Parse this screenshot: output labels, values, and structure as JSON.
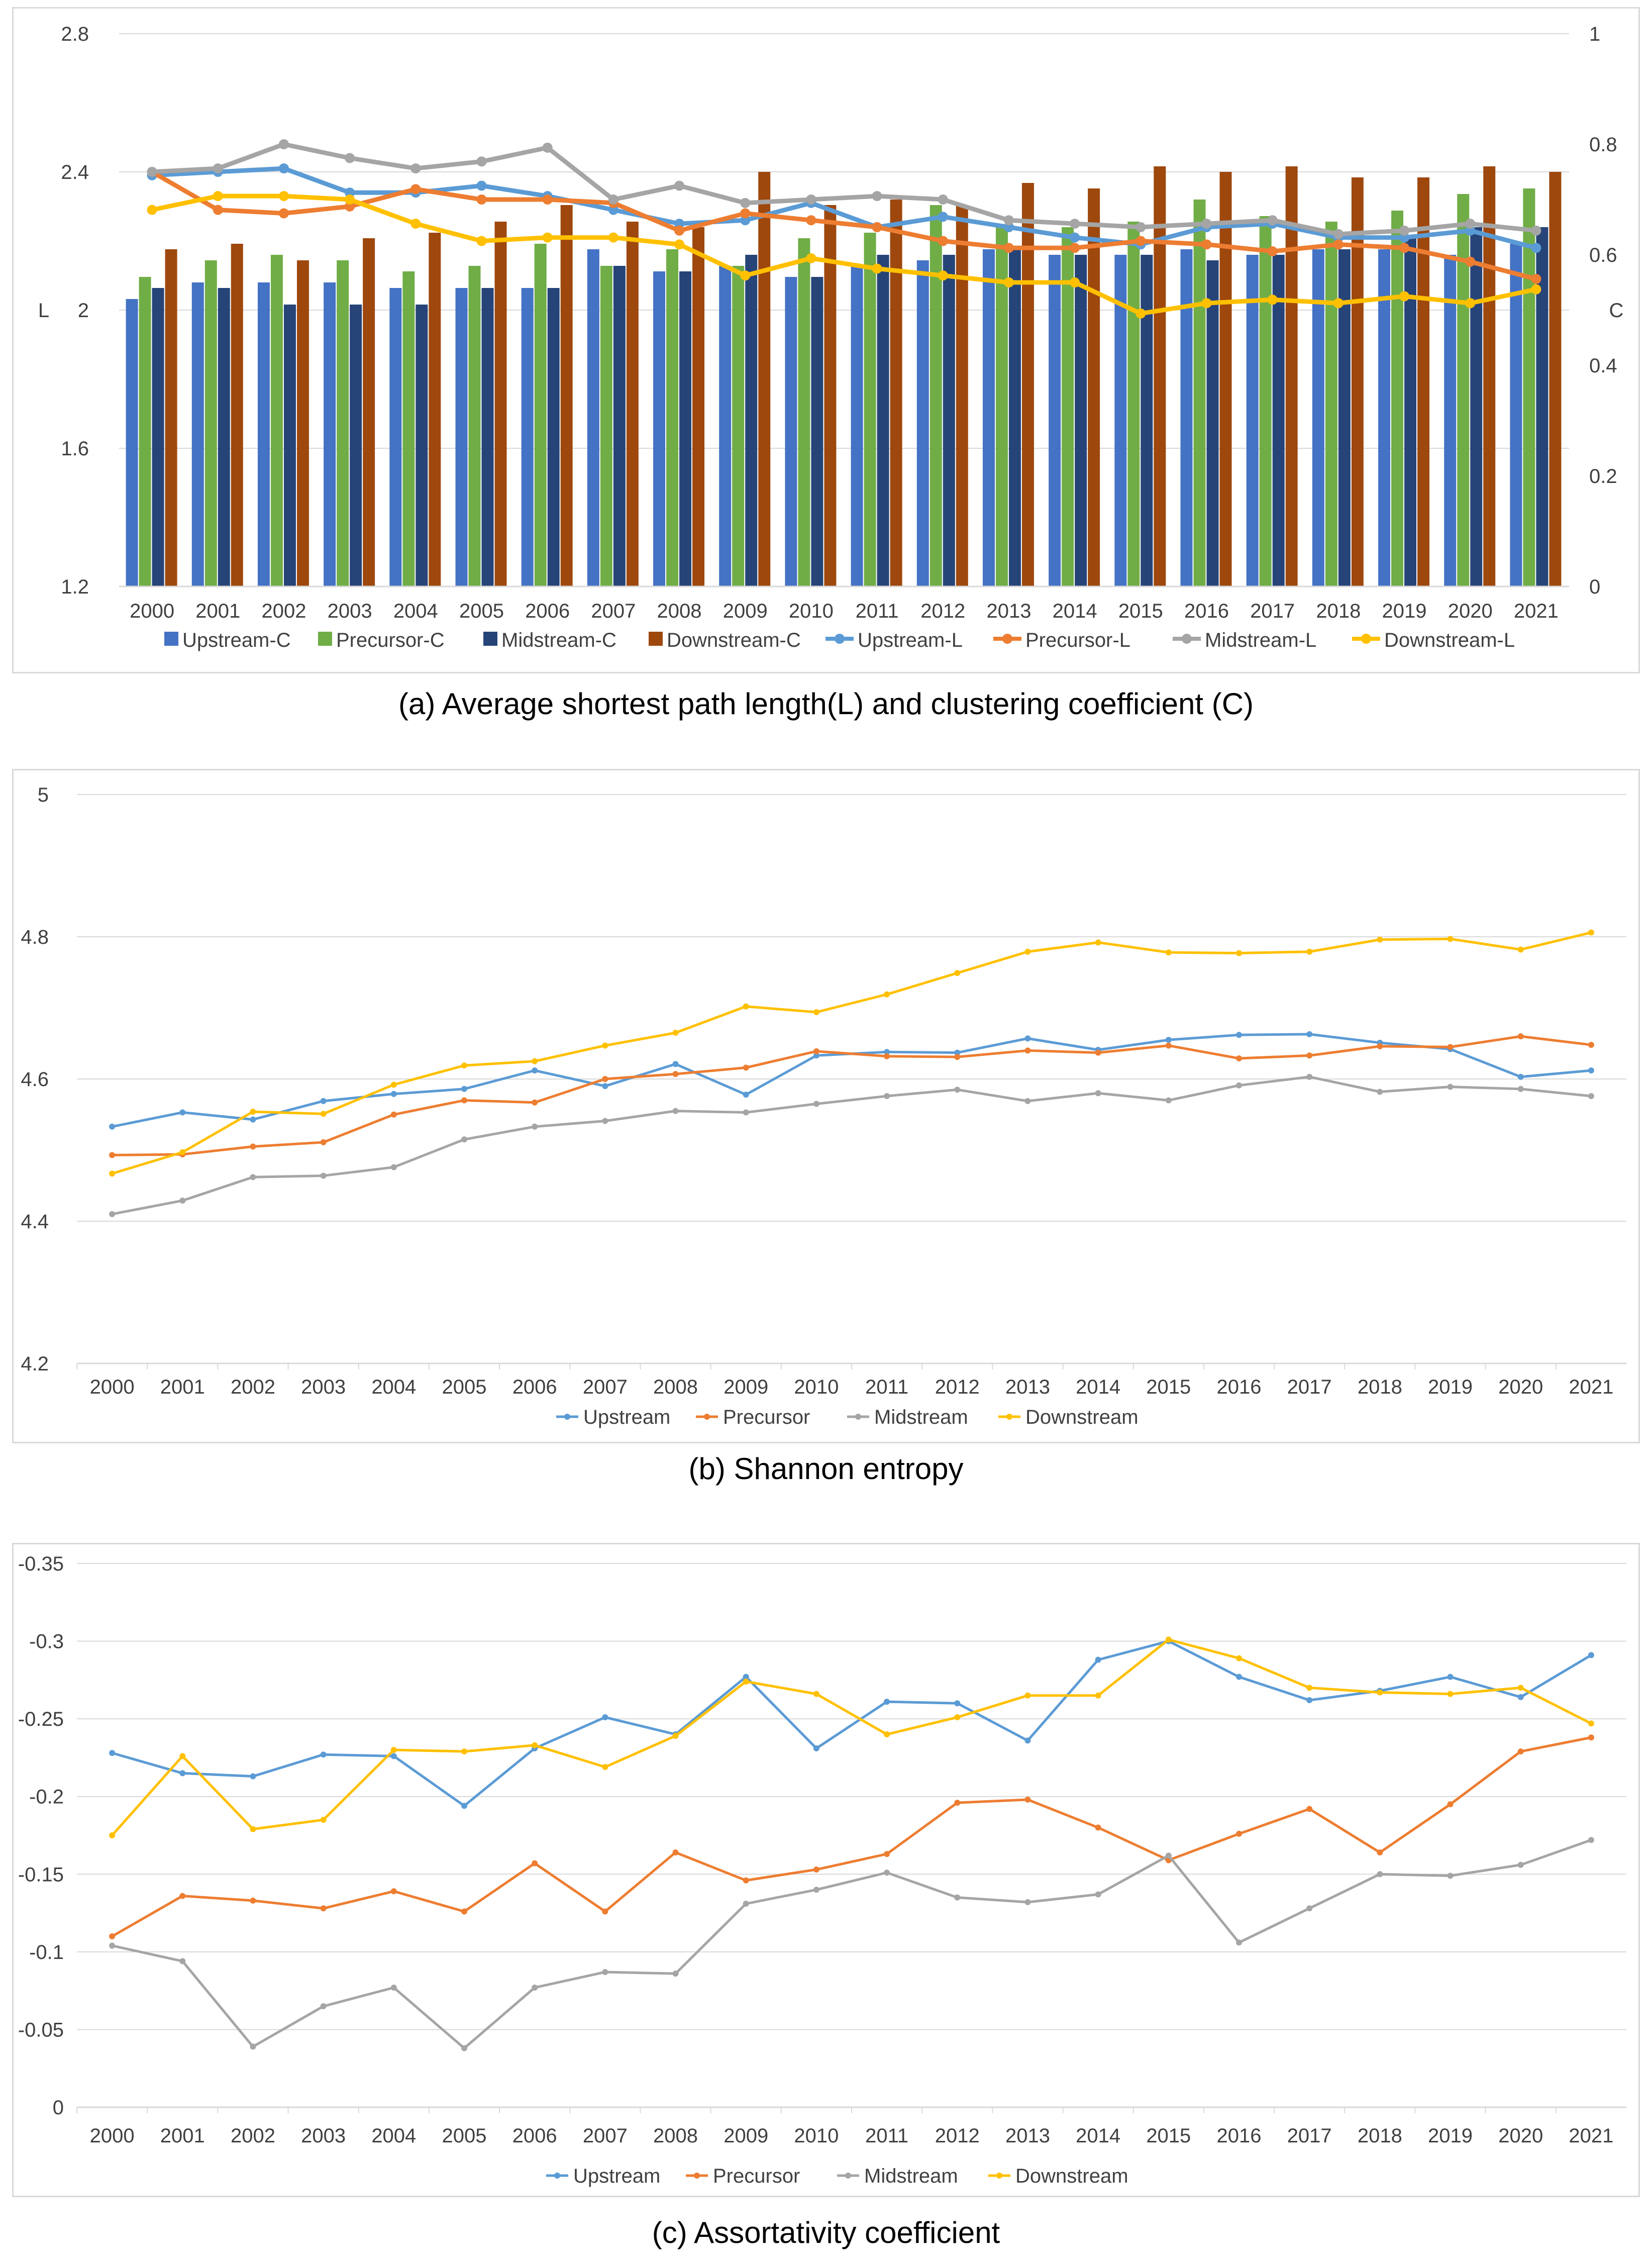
{
  "chart_data": [
    {
      "type": "bar+line",
      "id": "a",
      "caption": "(a) Average shortest path length(L) and clustering coefficient (C)",
      "title": "",
      "ylabel": "L",
      "y2label": "C",
      "categories": [
        "2000",
        "2001",
        "2002",
        "2003",
        "2004",
        "2005",
        "2006",
        "2007",
        "2008",
        "2009",
        "2010",
        "2011",
        "2012",
        "2013",
        "2014",
        "2015",
        "2016",
        "2017",
        "2018",
        "2019",
        "2020",
        "2021"
      ],
      "ylim": [
        1.2,
        2.8
      ],
      "yticks": [
        "1.2",
        "1.6",
        "2",
        "2.4",
        "2.8"
      ],
      "y2lim": [
        0,
        1
      ],
      "y2ticks": [
        "0",
        "0.2",
        "0.4",
        "0.6",
        "0.8",
        "1"
      ],
      "bars": [
        {
          "name": "Upstream-C",
          "color": "#4472c4",
          "values": [
            0.52,
            0.55,
            0.55,
            0.55,
            0.54,
            0.54,
            0.54,
            0.61,
            0.57,
            0.58,
            0.56,
            0.58,
            0.59,
            0.61,
            0.6,
            0.6,
            0.61,
            0.6,
            0.61,
            0.61,
            0.6,
            0.62
          ]
        },
        {
          "name": "Precursor-C",
          "color": "#70ad47",
          "values": [
            0.56,
            0.59,
            0.6,
            0.59,
            0.57,
            0.58,
            0.62,
            0.58,
            0.61,
            0.58,
            0.63,
            0.64,
            0.69,
            0.65,
            0.65,
            0.66,
            0.7,
            0.67,
            0.66,
            0.68,
            0.71,
            0.72
          ]
        },
        {
          "name": "Midstream-C",
          "color": "#264478",
          "values": [
            0.54,
            0.54,
            0.51,
            0.51,
            0.51,
            0.54,
            0.54,
            0.58,
            0.57,
            0.6,
            0.56,
            0.6,
            0.6,
            0.61,
            0.6,
            0.6,
            0.59,
            0.6,
            0.61,
            0.63,
            0.65,
            0.65
          ]
        },
        {
          "name": "Downstream-C",
          "color": "#9e480e",
          "values": [
            0.61,
            0.62,
            0.59,
            0.63,
            0.64,
            0.66,
            0.69,
            0.66,
            0.65,
            0.75,
            0.69,
            0.7,
            0.69,
            0.73,
            0.72,
            0.76,
            0.75,
            0.76,
            0.74,
            0.74,
            0.76,
            0.75
          ]
        }
      ],
      "lines": [
        {
          "name": "Upstream-L",
          "color": "#5b9bd5",
          "values": [
            2.39,
            2.4,
            2.41,
            2.34,
            2.34,
            2.36,
            2.33,
            2.29,
            2.25,
            2.26,
            2.31,
            2.24,
            2.27,
            2.24,
            2.21,
            2.19,
            2.24,
            2.25,
            2.21,
            2.21,
            2.23,
            2.18
          ]
        },
        {
          "name": "Precursor-L",
          "color": "#ed7d31",
          "values": [
            2.4,
            2.29,
            2.28,
            2.3,
            2.35,
            2.32,
            2.32,
            2.31,
            2.23,
            2.28,
            2.26,
            2.24,
            2.2,
            2.18,
            2.18,
            2.2,
            2.19,
            2.17,
            2.19,
            2.18,
            2.14,
            2.09
          ]
        },
        {
          "name": "Midstream-L",
          "color": "#a5a5a5",
          "values": [
            2.4,
            2.41,
            2.48,
            2.44,
            2.41,
            2.43,
            2.47,
            2.32,
            2.36,
            2.31,
            2.32,
            2.33,
            2.32,
            2.26,
            2.25,
            2.24,
            2.25,
            2.26,
            2.22,
            2.23,
            2.25,
            2.23
          ]
        },
        {
          "name": "Downstream-L",
          "color": "#ffc000",
          "values": [
            2.29,
            2.33,
            2.33,
            2.32,
            2.25,
            2.2,
            2.21,
            2.21,
            2.19,
            2.1,
            2.15,
            2.12,
            2.1,
            2.08,
            2.08,
            1.99,
            2.02,
            2.03,
            2.02,
            2.04,
            2.02,
            2.06
          ]
        }
      ],
      "legend": [
        "Upstream-C",
        "Precursor-C",
        "Midstream-C",
        "Downstream-C",
        "Upstream-L",
        "Precursor-L",
        "Midstream-L",
        "Downstream-L"
      ],
      "legend_position": "bottom"
    },
    {
      "type": "line",
      "id": "b",
      "caption": "(b) Shannon entropy",
      "title": "",
      "categories": [
        "2000",
        "2001",
        "2002",
        "2003",
        "2004",
        "2005",
        "2006",
        "2007",
        "2008",
        "2009",
        "2010",
        "2011",
        "2012",
        "2013",
        "2014",
        "2015",
        "2016",
        "2017",
        "2018",
        "2019",
        "2020",
        "2021"
      ],
      "ylim": [
        4.2,
        5
      ],
      "yticks": [
        "4.2",
        "4.4",
        "4.6",
        "4.8",
        "5"
      ],
      "series": [
        {
          "name": "Upstream",
          "color": "#5b9bd5",
          "values": [
            4.533,
            4.553,
            4.543,
            4.569,
            4.579,
            4.586,
            4.612,
            4.59,
            4.621,
            4.578,
            4.633,
            4.638,
            4.637,
            4.657,
            4.641,
            4.655,
            4.662,
            4.663,
            4.651,
            4.642,
            4.603,
            4.612
          ]
        },
        {
          "name": "Precursor",
          "color": "#ed7d31",
          "values": [
            4.493,
            4.494,
            4.505,
            4.511,
            4.55,
            4.57,
            4.567,
            4.6,
            4.607,
            4.616,
            4.639,
            4.632,
            4.631,
            4.64,
            4.637,
            4.647,
            4.629,
            4.633,
            4.646,
            4.645,
            4.66,
            4.648
          ]
        },
        {
          "name": "Midstream",
          "color": "#a5a5a5",
          "values": [
            4.41,
            4.429,
            4.462,
            4.464,
            4.476,
            4.515,
            4.533,
            4.541,
            4.555,
            4.553,
            4.565,
            4.576,
            4.585,
            4.569,
            4.58,
            4.57,
            4.591,
            4.603,
            4.582,
            4.589,
            4.586,
            4.576
          ]
        },
        {
          "name": "Downstream",
          "color": "#ffc000",
          "values": [
            4.467,
            4.497,
            4.554,
            4.551,
            4.592,
            4.619,
            4.625,
            4.647,
            4.665,
            4.702,
            4.694,
            4.719,
            4.749,
            4.779,
            4.792,
            4.778,
            4.777,
            4.779,
            4.796,
            4.797,
            4.782,
            4.806
          ]
        }
      ],
      "legend": [
        "Upstream",
        "Precursor",
        "Midstream",
        "Downstream"
      ],
      "legend_position": "bottom"
    },
    {
      "type": "line",
      "id": "c",
      "caption": "(c) Assortativity coefficient",
      "title": "",
      "categories": [
        "2000",
        "2001",
        "2002",
        "2003",
        "2004",
        "2005",
        "2006",
        "2007",
        "2008",
        "2009",
        "2010",
        "2011",
        "2012",
        "2013",
        "2014",
        "2015",
        "2016",
        "2017",
        "2018",
        "2019",
        "2020",
        "2021"
      ],
      "ylim": [
        0,
        -0.35
      ],
      "yticks": [
        "0",
        "-0.05",
        "-0.1",
        "-0.15",
        "-0.2",
        "-0.25",
        "-0.3",
        "-0.35"
      ],
      "series": [
        {
          "name": "Upstream",
          "color": "#5b9bd5",
          "values": [
            -0.228,
            -0.215,
            -0.213,
            -0.227,
            -0.226,
            -0.194,
            -0.231,
            -0.251,
            -0.24,
            -0.277,
            -0.231,
            -0.261,
            -0.26,
            -0.236,
            -0.288,
            -0.3,
            -0.277,
            -0.262,
            -0.268,
            -0.277,
            -0.264,
            -0.291
          ]
        },
        {
          "name": "Precursor",
          "color": "#ed7d31",
          "values": [
            -0.11,
            -0.136,
            -0.133,
            -0.128,
            -0.139,
            -0.126,
            -0.157,
            -0.126,
            -0.164,
            -0.146,
            -0.153,
            -0.163,
            -0.196,
            -0.198,
            -0.18,
            -0.159,
            -0.176,
            -0.192,
            -0.164,
            -0.195,
            -0.229,
            -0.238
          ]
        },
        {
          "name": "Midstream",
          "color": "#a5a5a5",
          "values": [
            -0.104,
            -0.094,
            -0.039,
            -0.065,
            -0.077,
            -0.038,
            -0.077,
            -0.087,
            -0.086,
            -0.131,
            -0.14,
            -0.151,
            -0.135,
            -0.132,
            -0.137,
            -0.162,
            -0.106,
            -0.128,
            -0.15,
            -0.149,
            -0.156,
            -0.172
          ]
        },
        {
          "name": "Downstream",
          "color": "#ffc000",
          "values": [
            -0.175,
            -0.226,
            -0.179,
            -0.185,
            -0.23,
            -0.229,
            -0.233,
            -0.219,
            -0.239,
            -0.274,
            -0.266,
            -0.24,
            -0.251,
            -0.265,
            -0.265,
            -0.301,
            -0.289,
            -0.27,
            -0.267,
            -0.266,
            -0.27,
            -0.247
          ]
        }
      ],
      "legend": [
        "Upstream",
        "Precursor",
        "Midstream",
        "Downstream"
      ],
      "legend_position": "bottom"
    }
  ]
}
